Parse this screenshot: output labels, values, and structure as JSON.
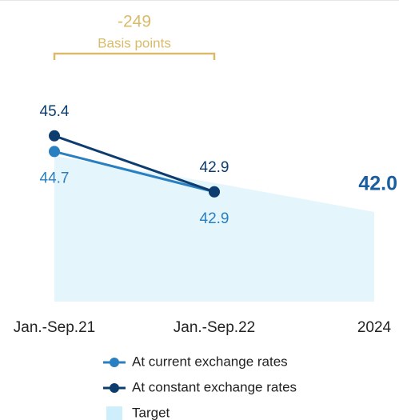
{
  "chart_data": {
    "type": "line",
    "categories": [
      "Jan.-Sep.21",
      "Jan.-Sep.22",
      "2024"
    ],
    "annotation": {
      "text": "-249",
      "subtext": "Basis points",
      "color": "#d9bb6a"
    },
    "ylim": [
      38,
      46
    ],
    "series": [
      {
        "name": "At current exchange rates",
        "color": "#2a7fc0",
        "style": "line",
        "label_position": "below",
        "values": [
          44.7,
          42.9,
          null
        ]
      },
      {
        "name": "At constant exchange rates",
        "color": "#0d3d6e",
        "style": "line",
        "label_position": "above",
        "values": [
          45.4,
          42.9,
          null
        ]
      },
      {
        "name": "Target",
        "color": "#e4f5fc",
        "label_color": "#1a5ea0",
        "style": "area",
        "label_position": "right",
        "values": [
          44.5,
          43.3,
          42.0
        ],
        "value_labels": [
          null,
          null,
          "42.0"
        ]
      }
    ]
  }
}
